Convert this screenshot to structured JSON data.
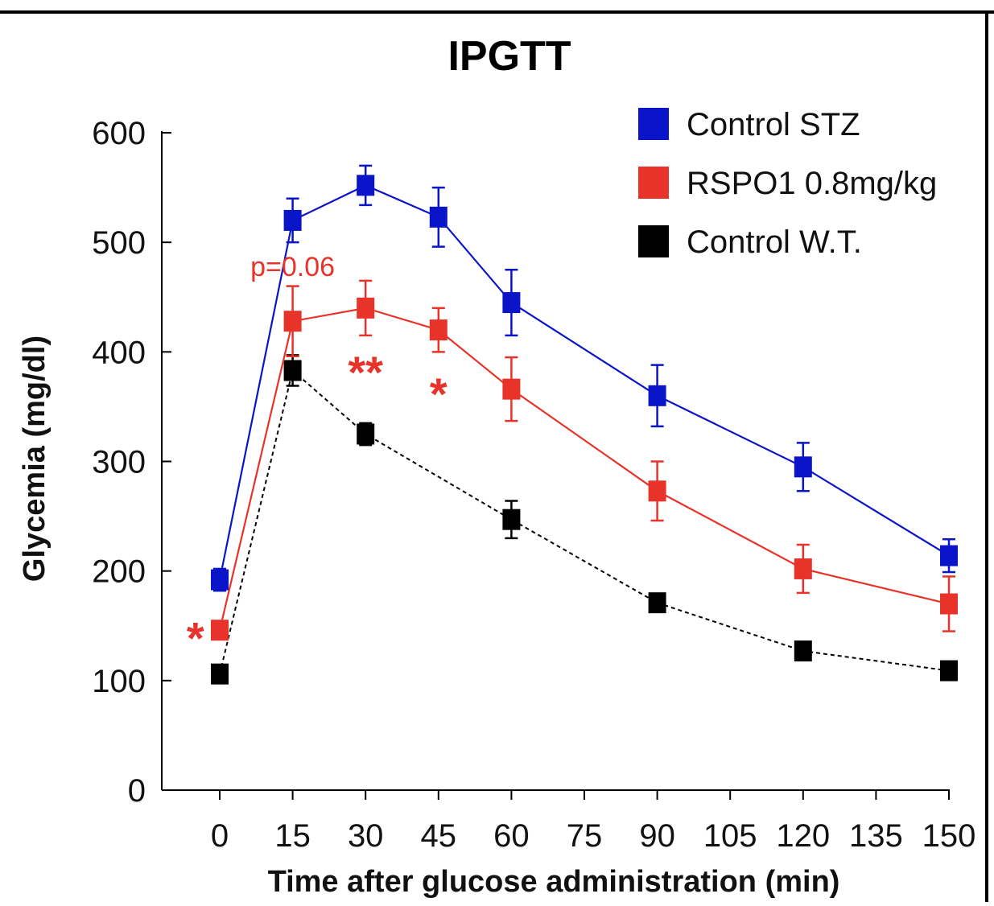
{
  "chart_data": {
    "type": "line",
    "title": "IPGTT",
    "xlabel": "Time after glucose administration (min)",
    "ylabel": "Glycemia (mg/dl)",
    "xlim": [
      0,
      150
    ],
    "ylim": [
      0,
      600
    ],
    "x_ticks": [
      "0",
      "15",
      "30",
      "45",
      "60",
      "75",
      "90",
      "105",
      "120",
      "135",
      "150"
    ],
    "y_ticks": [
      "0",
      "100",
      "200",
      "300",
      "400",
      "500",
      "600"
    ],
    "grid": false,
    "legend_position": "top-right",
    "series": [
      {
        "name": "Control STZ",
        "color": "#0a14c8",
        "line_style": "solid",
        "x": [
          0,
          15,
          30,
          45,
          60,
          90,
          120,
          150
        ],
        "values": [
          192,
          520,
          552,
          523,
          445,
          360,
          295,
          214
        ],
        "errors": [
          10,
          20,
          18,
          27,
          30,
          28,
          22,
          15
        ]
      },
      {
        "name": "RSPO1 0.8mg/kg",
        "color": "#e8332a",
        "line_style": "solid",
        "x": [
          0,
          15,
          30,
          45,
          60,
          90,
          120,
          150
        ],
        "values": [
          146,
          428,
          440,
          420,
          366,
          273,
          202,
          170
        ],
        "errors": [
          8,
          32,
          25,
          20,
          29,
          27,
          22,
          25
        ]
      },
      {
        "name": "Control W.T.",
        "color": "#000000",
        "line_style": "dashed",
        "x": [
          0,
          15,
          30,
          45,
          60,
          90,
          120,
          150
        ],
        "values": [
          106,
          383,
          325,
          null,
          247,
          171,
          127,
          109
        ],
        "errors": [
          6,
          14,
          10,
          null,
          17,
          8,
          8,
          7
        ]
      }
    ],
    "annotations": [
      {
        "text": "p=0.06",
        "x": 15,
        "y": 478,
        "color": "#e8332a"
      },
      {
        "text": "**",
        "x": 30,
        "y": 385,
        "color": "#e8332a"
      },
      {
        "text": "*",
        "x": 45,
        "y": 365,
        "color": "#e8332a"
      },
      {
        "text": "*",
        "x": -5,
        "y": 142,
        "color": "#e8332a"
      }
    ]
  }
}
